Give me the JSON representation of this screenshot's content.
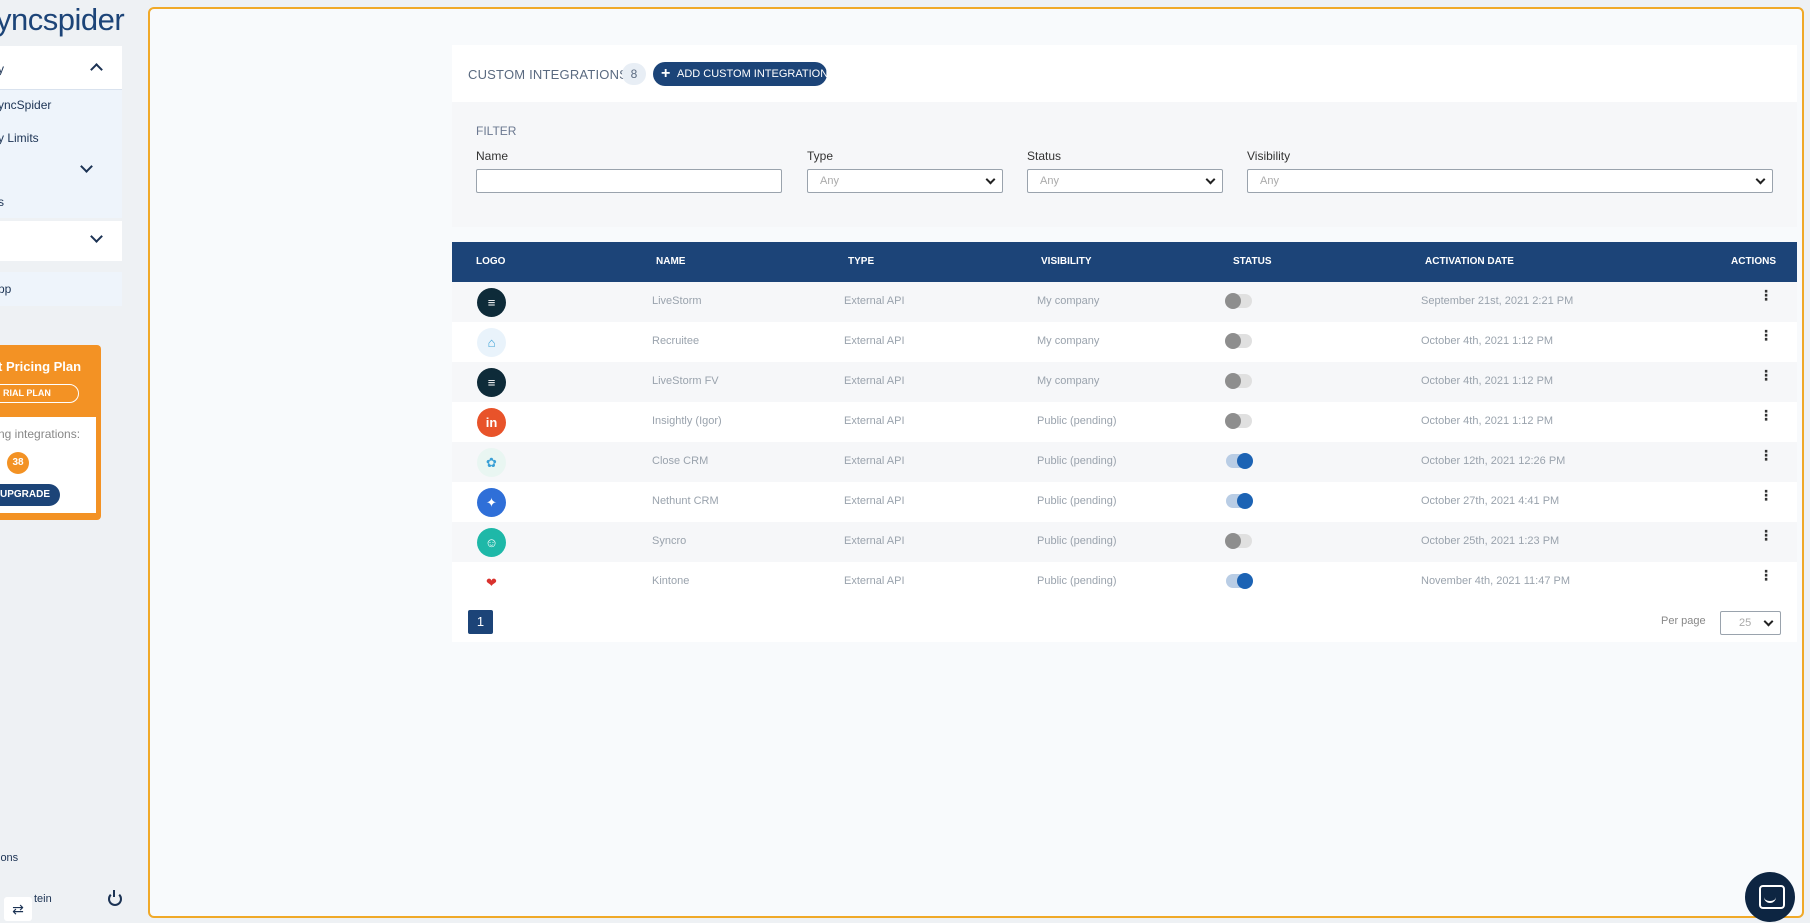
{
  "sidebar": {
    "logo_text": "yncspider",
    "section1_label": "y",
    "sub_items": [
      "yncSpider",
      "y Limits",
      "s"
    ],
    "item_app": "pp",
    "pricing": {
      "title": "t Pricing Plan",
      "plan_pill": "RIAL PLAN",
      "using_label": "ng integrations:",
      "count": "38",
      "upgrade_label": "UPGRADE"
    },
    "bottom_item": "ions",
    "user_name": "tein",
    "swap_glyph": "⇄"
  },
  "header": {
    "title": "CUSTOM INTEGRATIONS",
    "count": "8",
    "add_label": "ADD CUSTOM INTEGRATION",
    "add_glyph": "+"
  },
  "filter": {
    "title": "FILTER",
    "name_label": "Name",
    "name_value": "",
    "type_label": "Type",
    "type_value": "Any",
    "status_label": "Status",
    "status_value": "Any",
    "visibility_label": "Visibility",
    "visibility_value": "Any"
  },
  "table": {
    "columns": [
      "LOGO",
      "NAME",
      "TYPE",
      "VISIBILITY",
      "STATUS",
      "ACTIVATION DATE",
      "ACTIONS"
    ],
    "rows": [
      {
        "name": "LiveStorm",
        "type": "External API",
        "visibility": "My company",
        "status_on": false,
        "date": "September 21st, 2021 2:21 PM",
        "logo_color": "#0e2b39",
        "logo_glyph": "≡"
      },
      {
        "name": "Recruitee",
        "type": "External API",
        "visibility": "My company",
        "status_on": false,
        "date": "October 4th, 2021 1:12 PM",
        "logo_color": "#e9f3fb",
        "logo_glyph": "⌂"
      },
      {
        "name": "LiveStorm FV",
        "type": "External API",
        "visibility": "My company",
        "status_on": false,
        "date": "October 4th, 2021 1:12 PM",
        "logo_color": "#0e2b39",
        "logo_glyph": "≡"
      },
      {
        "name": "Insightly (Igor)",
        "type": "External API",
        "visibility": "Public (pending)",
        "status_on": false,
        "date": "October 4th, 2021 1:12 PM",
        "logo_color": "#e8532a",
        "logo_glyph": "in"
      },
      {
        "name": "Close CRM",
        "type": "External API",
        "visibility": "Public (pending)",
        "status_on": true,
        "date": "October 12th, 2021 12:26 PM",
        "logo_color": "#e9f6f2",
        "logo_glyph": "✿"
      },
      {
        "name": "Nethunt CRM",
        "type": "External API",
        "visibility": "Public (pending)",
        "status_on": true,
        "date": "October 27th, 2021 4:41 PM",
        "logo_color": "#2f6fd8",
        "logo_glyph": "✦"
      },
      {
        "name": "Syncro",
        "type": "External API",
        "visibility": "Public (pending)",
        "status_on": false,
        "date": "October 25th, 2021 1:23 PM",
        "logo_color": "#1eb8a8",
        "logo_glyph": "☺"
      },
      {
        "name": "Kintone",
        "type": "External API",
        "visibility": "Public (pending)",
        "status_on": true,
        "date": "November 4th, 2021 11:47 PM",
        "logo_color": "#ffffff",
        "logo_glyph": "❤"
      }
    ],
    "actions_glyph": "⋮"
  },
  "pagination": {
    "current_page": "1",
    "per_page_label": "Per page",
    "per_page_value": "25"
  },
  "colors": {
    "brand": "#1c4478",
    "accent_orange": "#f39224",
    "frame_border": "#f0a928"
  },
  "icons": [
    "chevron-up-icon",
    "chevron-down-icon",
    "plus-icon",
    "kebab-menu-icon",
    "power-icon",
    "swap-icon",
    "chat-icon"
  ]
}
